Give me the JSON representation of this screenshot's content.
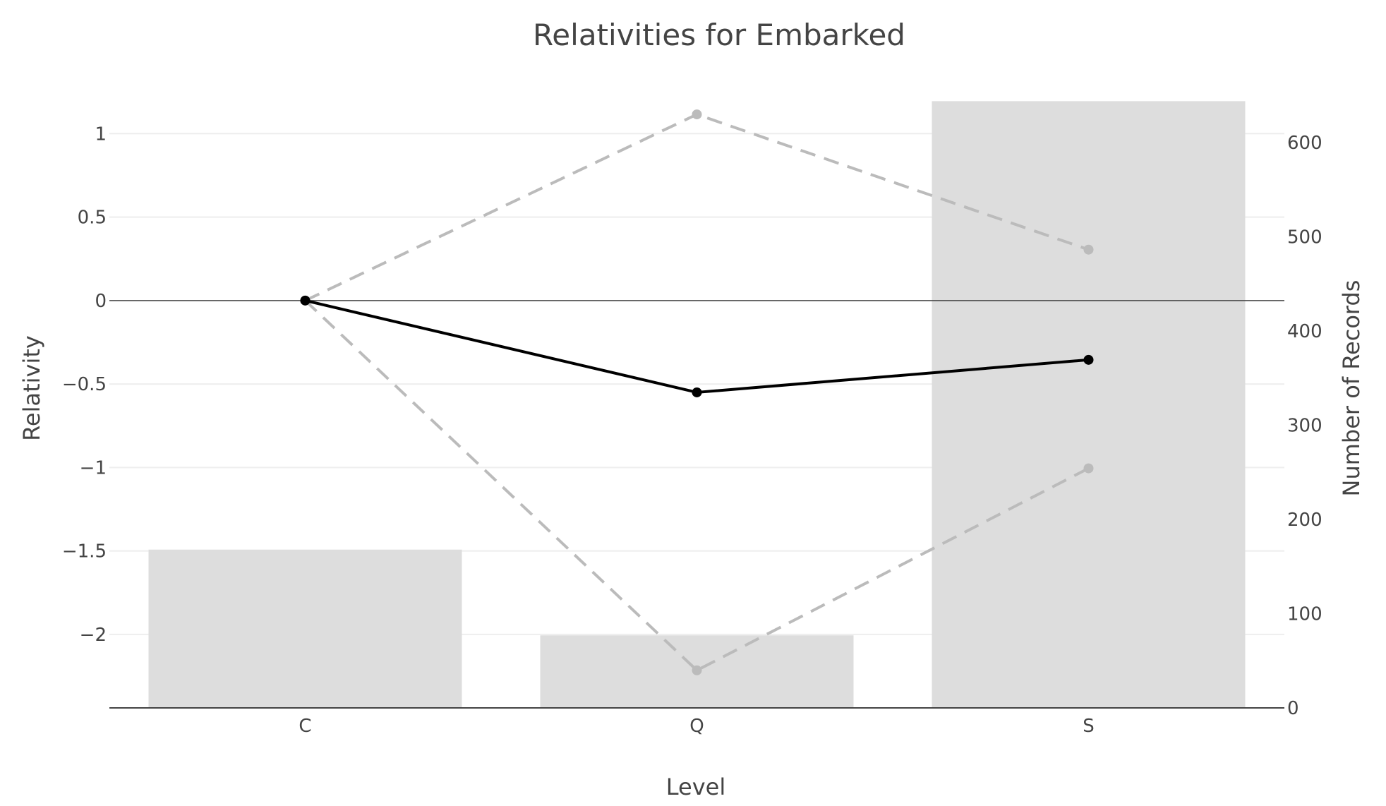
{
  "chart_data": {
    "type": "bar+line",
    "title": "Relativities for Embarked",
    "xlabel": "Level",
    "ylabel": "Relativity",
    "y2label": "Number of Records",
    "categories": [
      "C",
      "Q",
      "S"
    ],
    "y_axis": {
      "range": [
        -2.44,
        1.2
      ],
      "ticks": [
        1,
        0.5,
        0,
        -0.5,
        -1,
        -1.5,
        -2
      ],
      "tick_labels": [
        "1",
        "0.5",
        "0",
        "−0.5",
        "−1",
        "−1.5",
        "−2"
      ]
    },
    "y2_axis": {
      "range": [
        0,
        645
      ],
      "ticks": [
        0,
        100,
        200,
        300,
        400,
        500,
        600
      ],
      "tick_labels": [
        "0",
        "100",
        "200",
        "300",
        "400",
        "500",
        "600"
      ]
    },
    "bars": {
      "axis": "y2",
      "values": [
        168,
        77,
        644
      ]
    },
    "series": [
      {
        "role": "estimate",
        "values": [
          0,
          -0.55,
          -0.355
        ],
        "style": "solid"
      },
      {
        "role": "upper",
        "values": [
          0,
          1.115,
          0.305
        ],
        "style": "dashed"
      },
      {
        "role": "lower",
        "values": [
          0,
          -2.215,
          -1.005
        ],
        "style": "dashed"
      }
    ],
    "colors": {
      "bars": "#dddddd",
      "estimate": "#000000",
      "bounds": "#bbbbbb",
      "text": "#444444",
      "grid": "#eeeeee"
    },
    "grid": true,
    "legend": "none"
  }
}
